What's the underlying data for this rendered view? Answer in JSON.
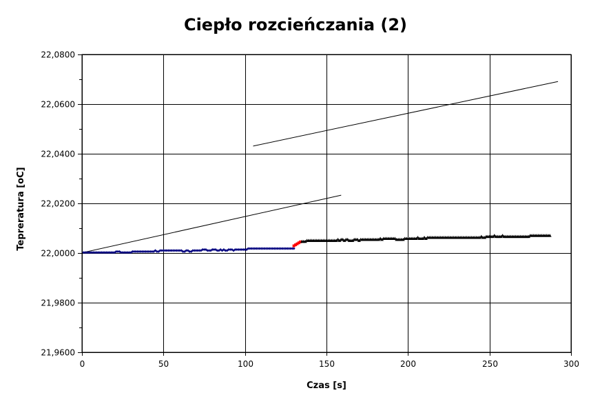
{
  "chart_data": {
    "type": "scatter",
    "title": "Ciepło rozcieńczania (2)",
    "xlabel": "Czas [s]",
    "ylabel": "Tepreratura [oC]",
    "xlim": [
      0,
      300
    ],
    "ylim": [
      21.96,
      22.08
    ],
    "x_ticks": [
      0,
      50,
      100,
      150,
      200,
      250,
      300
    ],
    "x_tick_labels": [
      "0",
      "50",
      "100",
      "150",
      "200",
      "250",
      "300"
    ],
    "y_ticks": [
      21.96,
      21.98,
      22.0,
      22.02,
      22.04,
      22.06,
      22.08
    ],
    "y_tick_labels": [
      "21,9600",
      "21,9800",
      "22,0000",
      "22,0200",
      "22,0400",
      "22,0600",
      "22,0800"
    ],
    "grid": true,
    "legend": "none",
    "series": [
      {
        "marker": "diamond",
        "color": "#000080",
        "points": [
          [
            1,
            22.0002
          ],
          [
            2,
            22.0002
          ],
          [
            3,
            22.0002
          ],
          [
            4,
            22.0002
          ],
          [
            5,
            22.0002
          ],
          [
            6,
            22.0002
          ],
          [
            7,
            22.0002
          ],
          [
            8,
            22.0002
          ],
          [
            9,
            22.0002
          ],
          [
            10,
            22.0002
          ],
          [
            11,
            22.0002
          ],
          [
            12,
            22.0002
          ],
          [
            13,
            22.0002
          ],
          [
            14,
            22.0002
          ],
          [
            15,
            22.0002
          ],
          [
            16,
            22.0002
          ],
          [
            17,
            22.0002
          ],
          [
            18,
            22.0002
          ],
          [
            19,
            22.0002
          ],
          [
            20,
            22.0002
          ],
          [
            21,
            22.0006
          ],
          [
            22,
            22.0006
          ],
          [
            23,
            22.0006
          ],
          [
            24,
            22.0002
          ],
          [
            25,
            22.0002
          ],
          [
            26,
            22.0002
          ],
          [
            27,
            22.0002
          ],
          [
            28,
            22.0002
          ],
          [
            29,
            22.0002
          ],
          [
            30,
            22.0002
          ],
          [
            31,
            22.0006
          ],
          [
            32,
            22.0006
          ],
          [
            33,
            22.0006
          ],
          [
            34,
            22.0006
          ],
          [
            35,
            22.0006
          ],
          [
            36,
            22.0006
          ],
          [
            37,
            22.0006
          ],
          [
            38,
            22.0006
          ],
          [
            39,
            22.0006
          ],
          [
            40,
            22.0006
          ],
          [
            41,
            22.0006
          ],
          [
            42,
            22.0006
          ],
          [
            43,
            22.0006
          ],
          [
            44,
            22.0006
          ],
          [
            45,
            22.001
          ],
          [
            46,
            22.0006
          ],
          [
            47,
            22.0006
          ],
          [
            48,
            22.001
          ],
          [
            49,
            22.001
          ],
          [
            50,
            22.001
          ],
          [
            51,
            22.001
          ],
          [
            52,
            22.001
          ],
          [
            53,
            22.001
          ],
          [
            54,
            22.001
          ],
          [
            55,
            22.001
          ],
          [
            56,
            22.001
          ],
          [
            57,
            22.001
          ],
          [
            58,
            22.001
          ],
          [
            59,
            22.001
          ],
          [
            60,
            22.001
          ],
          [
            61,
            22.001
          ],
          [
            62,
            22.0006
          ],
          [
            63,
            22.0006
          ],
          [
            64,
            22.001
          ],
          [
            65,
            22.001
          ],
          [
            66,
            22.0006
          ],
          [
            67,
            22.0006
          ],
          [
            68,
            22.001
          ],
          [
            69,
            22.001
          ],
          [
            70,
            22.001
          ],
          [
            71,
            22.001
          ],
          [
            72,
            22.001
          ],
          [
            73,
            22.001
          ],
          [
            74,
            22.0014
          ],
          [
            75,
            22.0014
          ],
          [
            76,
            22.0014
          ],
          [
            77,
            22.001
          ],
          [
            78,
            22.001
          ],
          [
            79,
            22.001
          ],
          [
            80,
            22.0014
          ],
          [
            81,
            22.0014
          ],
          [
            82,
            22.0014
          ],
          [
            83,
            22.001
          ],
          [
            84,
            22.001
          ],
          [
            85,
            22.0014
          ],
          [
            86,
            22.001
          ],
          [
            87,
            22.0014
          ],
          [
            88,
            22.001
          ],
          [
            89,
            22.001
          ],
          [
            90,
            22.0014
          ],
          [
            91,
            22.0014
          ],
          [
            92,
            22.0014
          ],
          [
            93,
            22.001
          ],
          [
            94,
            22.0014
          ],
          [
            95,
            22.0014
          ],
          [
            96,
            22.0014
          ],
          [
            97,
            22.0014
          ],
          [
            98,
            22.0014
          ],
          [
            99,
            22.0014
          ],
          [
            100,
            22.0014
          ],
          [
            101,
            22.0014
          ],
          [
            102,
            22.0018
          ],
          [
            103,
            22.0018
          ],
          [
            104,
            22.0018
          ],
          [
            105,
            22.0018
          ],
          [
            106,
            22.0018
          ],
          [
            107,
            22.0018
          ],
          [
            108,
            22.0018
          ],
          [
            109,
            22.0018
          ],
          [
            110,
            22.0018
          ],
          [
            111,
            22.0018
          ],
          [
            112,
            22.0018
          ],
          [
            113,
            22.0018
          ],
          [
            114,
            22.0018
          ],
          [
            115,
            22.0018
          ],
          [
            116,
            22.0018
          ],
          [
            117,
            22.0018
          ],
          [
            118,
            22.0018
          ],
          [
            119,
            22.0018
          ],
          [
            120,
            22.0018
          ],
          [
            121,
            22.0018
          ],
          [
            122,
            22.0018
          ],
          [
            123,
            22.0018
          ],
          [
            124,
            22.0018
          ],
          [
            125,
            22.0018
          ],
          [
            126,
            22.0018
          ],
          [
            127,
            22.0018
          ],
          [
            128,
            22.0018
          ],
          [
            129,
            22.0018
          ],
          [
            130,
            22.0018
          ]
        ]
      },
      {
        "marker": "square",
        "color": "#ff0000",
        "points": [
          [
            130,
            22.0029
          ],
          [
            131,
            22.0033
          ],
          [
            132,
            22.0037
          ],
          [
            133,
            22.0041
          ],
          [
            134,
            22.0045
          ]
        ]
      },
      {
        "marker": "triangle",
        "color": "#000000",
        "points": [
          [
            135,
            22.0045
          ],
          [
            136,
            22.0045
          ],
          [
            137,
            22.0045
          ],
          [
            138,
            22.0049
          ],
          [
            139,
            22.0049
          ],
          [
            140,
            22.0049
          ],
          [
            141,
            22.0049
          ],
          [
            142,
            22.0049
          ],
          [
            143,
            22.0049
          ],
          [
            144,
            22.0049
          ],
          [
            145,
            22.0049
          ],
          [
            146,
            22.0049
          ],
          [
            147,
            22.0049
          ],
          [
            148,
            22.0049
          ],
          [
            149,
            22.0049
          ],
          [
            150,
            22.0049
          ],
          [
            151,
            22.0049
          ],
          [
            152,
            22.0049
          ],
          [
            153,
            22.0049
          ],
          [
            154,
            22.0049
          ],
          [
            155,
            22.0049
          ],
          [
            156,
            22.0049
          ],
          [
            157,
            22.0053
          ],
          [
            158,
            22.0049
          ],
          [
            159,
            22.0053
          ],
          [
            160,
            22.0053
          ],
          [
            161,
            22.0049
          ],
          [
            162,
            22.0053
          ],
          [
            163,
            22.0053
          ],
          [
            164,
            22.0049
          ],
          [
            165,
            22.0049
          ],
          [
            166,
            22.0049
          ],
          [
            167,
            22.0053
          ],
          [
            168,
            22.0053
          ],
          [
            169,
            22.0053
          ],
          [
            170,
            22.0049
          ],
          [
            171,
            22.0053
          ],
          [
            172,
            22.0053
          ],
          [
            173,
            22.0053
          ],
          [
            174,
            22.0053
          ],
          [
            175,
            22.0053
          ],
          [
            176,
            22.0053
          ],
          [
            177,
            22.0053
          ],
          [
            178,
            22.0053
          ],
          [
            179,
            22.0053
          ],
          [
            180,
            22.0053
          ],
          [
            181,
            22.0053
          ],
          [
            182,
            22.0053
          ],
          [
            183,
            22.0057
          ],
          [
            184,
            22.0053
          ],
          [
            185,
            22.0057
          ],
          [
            186,
            22.0057
          ],
          [
            187,
            22.0057
          ],
          [
            188,
            22.0057
          ],
          [
            189,
            22.0057
          ],
          [
            190,
            22.0057
          ],
          [
            191,
            22.0057
          ],
          [
            192,
            22.0057
          ],
          [
            193,
            22.0053
          ],
          [
            194,
            22.0053
          ],
          [
            195,
            22.0053
          ],
          [
            196,
            22.0053
          ],
          [
            197,
            22.0053
          ],
          [
            198,
            22.0057
          ],
          [
            199,
            22.0057
          ],
          [
            200,
            22.0057
          ],
          [
            201,
            22.0057
          ],
          [
            202,
            22.0057
          ],
          [
            203,
            22.0057
          ],
          [
            204,
            22.0057
          ],
          [
            205,
            22.0057
          ],
          [
            206,
            22.0061
          ],
          [
            207,
            22.0057
          ],
          [
            208,
            22.0057
          ],
          [
            209,
            22.0057
          ],
          [
            210,
            22.0061
          ],
          [
            211,
            22.0057
          ],
          [
            212,
            22.0061
          ],
          [
            213,
            22.0061
          ],
          [
            214,
            22.0061
          ],
          [
            215,
            22.0061
          ],
          [
            216,
            22.0061
          ],
          [
            217,
            22.0061
          ],
          [
            218,
            22.0061
          ],
          [
            219,
            22.0061
          ],
          [
            220,
            22.0061
          ],
          [
            221,
            22.0061
          ],
          [
            222,
            22.0061
          ],
          [
            223,
            22.0061
          ],
          [
            224,
            22.0061
          ],
          [
            225,
            22.0061
          ],
          [
            226,
            22.0061
          ],
          [
            227,
            22.0061
          ],
          [
            228,
            22.0061
          ],
          [
            229,
            22.0061
          ],
          [
            230,
            22.0061
          ],
          [
            231,
            22.0061
          ],
          [
            232,
            22.0061
          ],
          [
            233,
            22.0061
          ],
          [
            234,
            22.0061
          ],
          [
            235,
            22.0061
          ],
          [
            236,
            22.0061
          ],
          [
            237,
            22.0061
          ],
          [
            238,
            22.0061
          ],
          [
            239,
            22.0061
          ],
          [
            240,
            22.0061
          ],
          [
            241,
            22.0061
          ],
          [
            242,
            22.0061
          ],
          [
            243,
            22.0061
          ],
          [
            244,
            22.0061
          ],
          [
            245,
            22.0065
          ],
          [
            246,
            22.0061
          ],
          [
            247,
            22.0061
          ],
          [
            248,
            22.0065
          ],
          [
            249,
            22.0065
          ],
          [
            250,
            22.0065
          ],
          [
            251,
            22.0065
          ],
          [
            252,
            22.0065
          ],
          [
            253,
            22.0069
          ],
          [
            254,
            22.0065
          ],
          [
            255,
            22.0065
          ],
          [
            256,
            22.0065
          ],
          [
            257,
            22.0065
          ],
          [
            258,
            22.0069
          ],
          [
            259,
            22.0065
          ],
          [
            260,
            22.0065
          ],
          [
            261,
            22.0065
          ],
          [
            262,
            22.0065
          ],
          [
            263,
            22.0065
          ],
          [
            264,
            22.0065
          ],
          [
            265,
            22.0065
          ],
          [
            266,
            22.0065
          ],
          [
            267,
            22.0065
          ],
          [
            268,
            22.0065
          ],
          [
            269,
            22.0065
          ],
          [
            270,
            22.0065
          ],
          [
            271,
            22.0065
          ],
          [
            272,
            22.0065
          ],
          [
            273,
            22.0065
          ],
          [
            274,
            22.0065
          ],
          [
            275,
            22.0069
          ],
          [
            276,
            22.0069
          ],
          [
            277,
            22.0069
          ],
          [
            278,
            22.0069
          ],
          [
            279,
            22.0069
          ],
          [
            280,
            22.0069
          ],
          [
            281,
            22.0069
          ],
          [
            282,
            22.0069
          ],
          [
            283,
            22.0069
          ],
          [
            284,
            22.0069
          ],
          [
            285,
            22.0069
          ],
          [
            286,
            22.0069
          ],
          [
            287,
            22.0069
          ]
        ]
      }
    ],
    "trendlines": [
      {
        "x": [
          0,
          159
        ],
        "y": [
          22.0001,
          22.0233
        ],
        "color": "#000000"
      },
      {
        "x": [
          105,
          292
        ],
        "y": [
          22.0431,
          22.0691
        ],
        "color": "#000000"
      }
    ]
  }
}
